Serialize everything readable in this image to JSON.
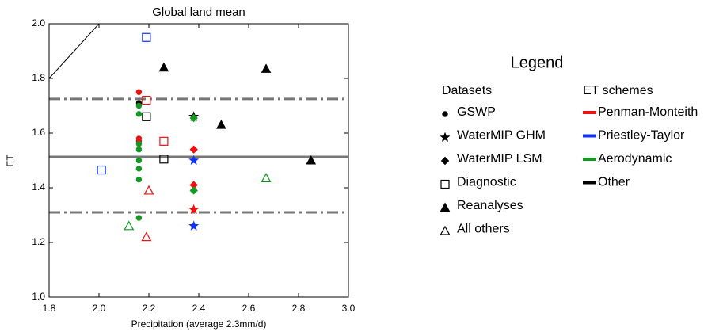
{
  "chart_data": {
    "type": "scatter",
    "title": "Global land mean",
    "x_label": "Precipitation (average 2.3mm/d)",
    "y_label": "ET",
    "xlim": [
      1.8,
      3.0
    ],
    "ylim": [
      1.0,
      2.0
    ],
    "xticks": [
      1.8,
      {
        "value": 2,
        "label": "2.0"
      },
      2.2,
      2.4,
      2.6,
      2.8,
      {
        "value": 3,
        "label": "3.0"
      }
    ],
    "yticks": [
      {
        "value": 1,
        "label": "1.0"
      },
      1.2,
      1.4,
      1.6,
      1.8,
      {
        "value": 2,
        "label": "2.0"
      }
    ],
    "reference_lines": {
      "mean": 1.513,
      "bounds": [
        1.725,
        1.31
      ],
      "color": "#777777"
    },
    "legend_title": "Legend",
    "datasets_title": "Datasets",
    "schemes_title": "ET schemes",
    "schemes": [
      {
        "name": "Penman-Monteith",
        "color": "#ee1111"
      },
      {
        "name": "Priestley-Taylor",
        "color": "#1133ee"
      },
      {
        "name": "Aerodynamic",
        "color": "#119922"
      },
      {
        "name": "Other",
        "color": "#000000"
      }
    ],
    "series": [
      {
        "name": "GSWP",
        "marker": "circle",
        "filled": true,
        "x": [
          2.16,
          2.16,
          2.16,
          2.16,
          2.16,
          2.16,
          2.16,
          2.16,
          2.16,
          2.16,
          2.16,
          2.16
        ],
        "values": [
          1.75,
          1.71,
          1.7,
          1.67,
          1.58,
          1.57,
          1.56,
          1.54,
          1.5,
          1.47,
          1.43,
          1.29
        ],
        "colors": [
          "#ee1111",
          "#000000",
          "#119922",
          "#119922",
          "#ee1111",
          "#ee1111",
          "#119922",
          "#119922",
          "#119922",
          "#119922",
          "#119922",
          "#119922"
        ]
      },
      {
        "name": "WaterMIP GHM",
        "marker": "star",
        "filled": true,
        "x": [
          2.38,
          2.38,
          2.38,
          2.38
        ],
        "values": [
          1.66,
          1.5,
          1.32,
          1.26
        ],
        "colors": [
          "#000000",
          "#1133ee",
          "#ee1111",
          "#1133ee"
        ]
      },
      {
        "name": "WaterMIP LSM",
        "marker": "diamond",
        "filled": true,
        "x": [
          2.38,
          2.38,
          2.38,
          2.38
        ],
        "values": [
          1.655,
          1.54,
          1.41,
          1.39
        ],
        "colors": [
          "#119922",
          "#ee1111",
          "#ee1111",
          "#119922"
        ]
      },
      {
        "name": "Diagnostic",
        "marker": "square",
        "filled": false,
        "x": [
          2.19,
          2.19,
          2.19,
          2.26,
          2.26,
          2.01
        ],
        "values": [
          1.95,
          1.72,
          1.66,
          1.57,
          1.505,
          1.465
        ],
        "colors": [
          "#1133ee",
          "#ee1111",
          "#000000",
          "#ee1111",
          "#000000",
          "#1133ee"
        ]
      },
      {
        "name": "Reanalyses",
        "marker": "triangle",
        "filled": true,
        "x": [
          2.26,
          2.67,
          2.49,
          2.85
        ],
        "values": [
          1.84,
          1.835,
          1.63,
          1.5
        ],
        "colors": [
          "#000000",
          "#000000",
          "#000000",
          "#000000"
        ]
      },
      {
        "name": "All others",
        "marker": "triangle",
        "filled": false,
        "x": [
          2.2,
          2.19,
          2.12,
          2.67
        ],
        "values": [
          1.39,
          1.22,
          1.26,
          1.435
        ],
        "colors": [
          "#ee1111",
          "#ee1111",
          "#119922",
          "#119922"
        ]
      }
    ]
  }
}
